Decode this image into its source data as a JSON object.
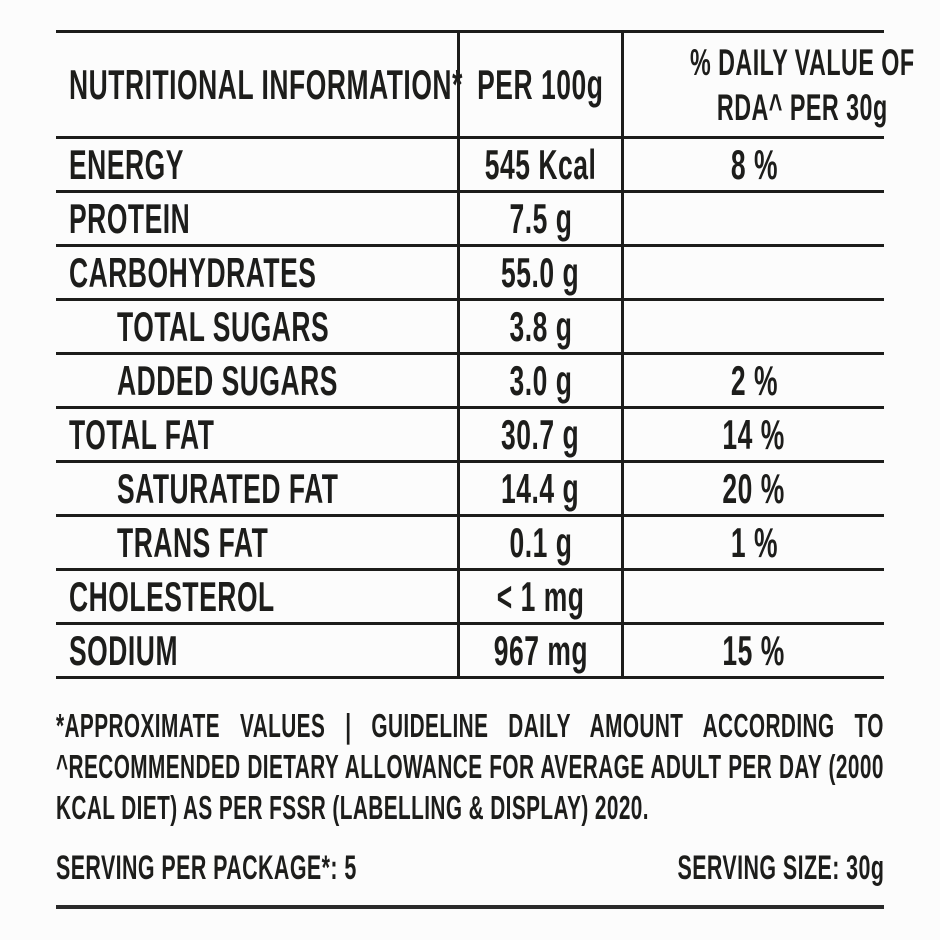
{
  "table": {
    "header": {
      "col1": "NUTRITIONAL INFORMATION*",
      "col2": "PER 100g",
      "col3_lines": [
        "% DAILY VALUE OF",
        "RDA^ PER 30g"
      ]
    },
    "rows": [
      {
        "label": "ENERGY",
        "per100g": "545 Kcal",
        "rda": "8 %",
        "indent": false
      },
      {
        "label": "PROTEIN",
        "per100g": "7.5 g",
        "rda": "",
        "indent": false
      },
      {
        "label": "CARBOHYDRATES",
        "per100g": "55.0 g",
        "rda": "",
        "indent": false
      },
      {
        "label": "TOTAL SUGARS",
        "per100g": "3.8 g",
        "rda": "",
        "indent": true
      },
      {
        "label": "ADDED SUGARS",
        "per100g": "3.0 g",
        "rda": "2 %",
        "indent": true
      },
      {
        "label": "TOTAL FAT",
        "per100g": "30.7 g",
        "rda": "14 %",
        "indent": false
      },
      {
        "label": "SATURATED FAT",
        "per100g": "14.4 g",
        "rda": "20 %",
        "indent": true
      },
      {
        "label": "TRANS FAT",
        "per100g": "0.1 g",
        "rda": "1 %",
        "indent": true
      },
      {
        "label": "CHOLESTEROL",
        "per100g": "< 1 mg",
        "rda": "",
        "indent": false
      },
      {
        "label": "SODIUM",
        "per100g": "967 mg",
        "rda": "15 %",
        "indent": false
      }
    ]
  },
  "footnote": {
    "lines": [
      "*APPROXIMATE VALUES | GUIDELINE DAILY AMOUNT ACCORDING TO",
      "^RECOMMENDED DIETARY ALLOWANCE FOR AVERAGE ADULT PER DAY (2000",
      "KCAL DIET) AS PER FSSR (LABELLING & DISPLAY) 2020."
    ]
  },
  "serving": {
    "per_package": "SERVING PER PACKAGE*: 5",
    "size": "SERVING SIZE: 30g"
  },
  "colors": {
    "text": "#1d1d1b",
    "border": "#1d1d1b",
    "background": "#fcfcfc"
  }
}
